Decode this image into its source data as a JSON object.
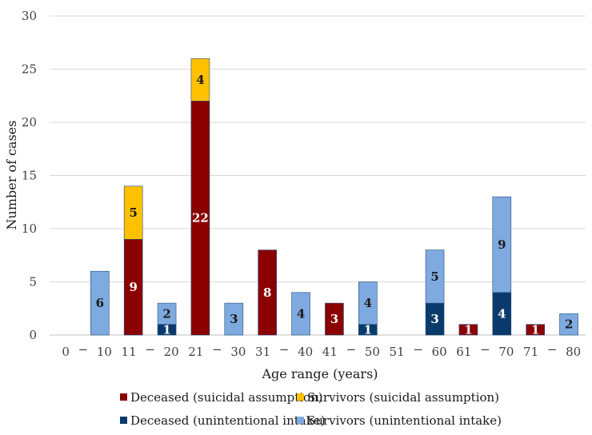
{
  "chart_data": {
    "type": "bar",
    "stacked": true,
    "title": "",
    "xlabel": "Age range (years)",
    "ylabel": "Number of cases",
    "ylim": [
      0,
      30
    ],
    "yticks": [
      "0",
      "5",
      "10",
      "15",
      "20",
      "25",
      "30"
    ],
    "grid": true,
    "legend_position": "bottom",
    "category_ticks": [
      {
        "from": "0",
        "to": "10"
      },
      {
        "from": "11",
        "to": "20"
      },
      {
        "from": "21",
        "to": "30"
      },
      {
        "from": "31",
        "to": "40"
      },
      {
        "from": "41",
        "to": "50"
      },
      {
        "from": "51",
        "to": "60"
      },
      {
        "from": "61",
        "to": "70"
      },
      {
        "from": "71",
        "to": "80"
      }
    ],
    "tick_separator": "−",
    "groups": [
      {
        "category": "0 − 10",
        "slot": "unintentional",
        "deceased": 0,
        "survivors": 6
      },
      {
        "category": "11 − 20",
        "slot": "suicidal",
        "deceased": 9,
        "survivors": 5
      },
      {
        "category": "11 − 20",
        "slot": "unintentional",
        "deceased": 1,
        "survivors": 2
      },
      {
        "category": "21 − 30",
        "slot": "suicidal",
        "deceased": 22,
        "survivors": 4
      },
      {
        "category": "21 − 30",
        "slot": "unintentional",
        "deceased": 0,
        "survivors": 3
      },
      {
        "category": "31 − 40",
        "slot": "suicidal",
        "deceased": 8,
        "survivors": 0
      },
      {
        "category": "31 − 40",
        "slot": "unintentional",
        "deceased": 0,
        "survivors": 4
      },
      {
        "category": "41 − 50",
        "slot": "suicidal",
        "deceased": 3,
        "survivors": 0
      },
      {
        "category": "41 − 50",
        "slot": "unintentional",
        "deceased": 1,
        "survivors": 4
      },
      {
        "category": "51 − 60",
        "slot": "unintentional",
        "deceased": 3,
        "survivors": 5
      },
      {
        "category": "61 − 70",
        "slot": "suicidal",
        "deceased": 1,
        "survivors": 0
      },
      {
        "category": "61 − 70",
        "slot": "unintentional",
        "deceased": 4,
        "survivors": 9
      },
      {
        "category": "71 − 80",
        "slot": "suicidal",
        "deceased": 1,
        "survivors": 0
      },
      {
        "category": "71 − 80",
        "slot": "unintentional",
        "deceased": 0,
        "survivors": 2
      }
    ],
    "series": [
      {
        "name": "Deceased (suicidal assumption)",
        "color": "#8b0000",
        "label_color": "#ffffff"
      },
      {
        "name": "Survivors (suicidal assumption)",
        "color": "#ffc000",
        "label_color": "#1a1a1a"
      },
      {
        "name": "Deceased (unintentional intake)",
        "color": "#0a3a6b",
        "label_color": "#ffffff"
      },
      {
        "name": "Survivors (unintentional intake)",
        "color": "#7faadf",
        "label_color": "#1a1a1a"
      }
    ]
  }
}
